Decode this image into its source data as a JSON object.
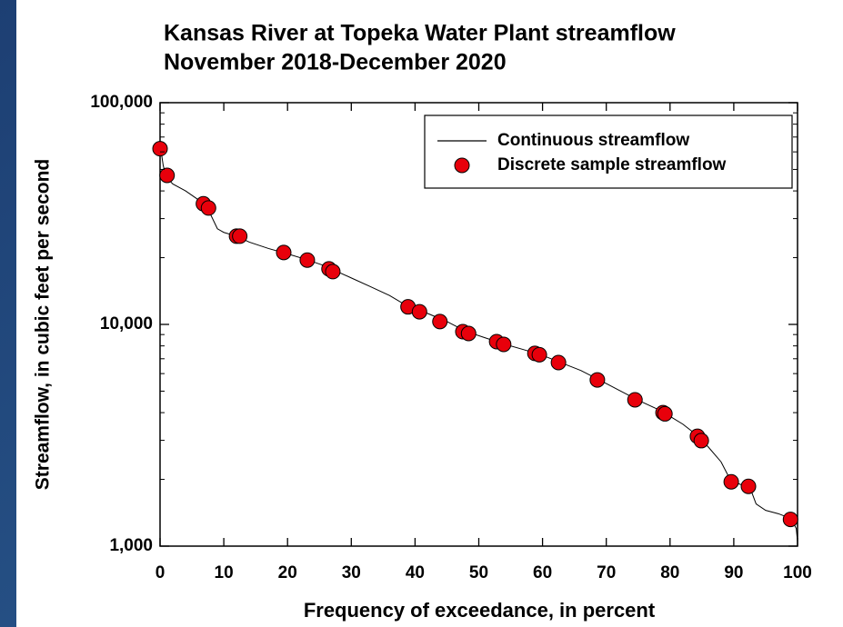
{
  "chart_data": {
    "type": "line",
    "title": "Kansas River at Topeka Water Plant streamflow",
    "subtitle": "November 2018-December 2020",
    "x_label": "Frequency of exceedance, in percent",
    "y_label": "Streamflow, in cubic feet per second",
    "log_y": true,
    "xlim": [
      0,
      100
    ],
    "xticks": [
      0,
      10,
      20,
      30,
      40,
      50,
      60,
      70,
      80,
      90,
      100
    ],
    "ylim": [
      1000,
      100000
    ],
    "yticks": [
      {
        "value": 1000,
        "label": "1,000"
      },
      {
        "value": 10000,
        "label": "10,000"
      },
      {
        "value": 100000,
        "label": "100,000"
      }
    ],
    "yminorticks": [
      2000,
      3000,
      4000,
      5000,
      6000,
      7000,
      8000,
      9000,
      20000,
      30000,
      40000,
      50000,
      60000,
      70000,
      80000,
      90000
    ],
    "legend": "upper right",
    "series": [
      {
        "name": "Continuous streamflow",
        "kind": "line",
        "color": "#000000",
        "x": [
          0,
          0.5,
          1,
          2,
          4,
          6,
          7,
          8,
          9,
          10,
          12,
          14,
          17,
          20,
          23,
          26,
          28,
          30,
          33,
          36,
          39,
          42,
          45,
          48,
          51,
          54,
          57,
          60,
          63,
          66,
          69,
          72,
          75,
          78,
          80,
          82,
          84,
          85,
          86,
          88,
          89.5,
          91,
          92.5,
          93.5,
          95,
          97,
          99,
          99.8,
          100
        ],
        "values": [
          65000,
          52000,
          46000,
          43000,
          40000,
          36500,
          34500,
          31000,
          27000,
          26000,
          25000,
          23500,
          22000,
          20800,
          19600,
          18300,
          17200,
          16200,
          14800,
          13500,
          12000,
          11200,
          10300,
          9300,
          8700,
          8150,
          7700,
          7250,
          6700,
          6200,
          5600,
          5050,
          4550,
          4150,
          3850,
          3550,
          3200,
          3000,
          2800,
          2400,
          1980,
          1900,
          1850,
          1550,
          1450,
          1400,
          1330,
          1200,
          1050
        ]
      },
      {
        "name": "Discrete sample streamflow",
        "kind": "scatter",
        "color": "#e8000b",
        "x": [
          0,
          1.1,
          6.8,
          7.6,
          12,
          12.5,
          19.4,
          23.1,
          26.5,
          27.1,
          38.9,
          40.7,
          43.9,
          47.5,
          48.4,
          52.8,
          53.9,
          58.8,
          59.5,
          62.5,
          68.6,
          74.5,
          78.9,
          79.2,
          84.3,
          84.9,
          89.6,
          92.3,
          98.9
        ],
        "values": [
          62000,
          47000,
          35000,
          33500,
          25000,
          25000,
          21100,
          19500,
          17800,
          17300,
          12000,
          11400,
          10300,
          9270,
          9100,
          8360,
          8130,
          7400,
          7300,
          6730,
          5620,
          4570,
          4000,
          3950,
          3130,
          2990,
          1950,
          1860,
          1320
        ]
      }
    ]
  }
}
